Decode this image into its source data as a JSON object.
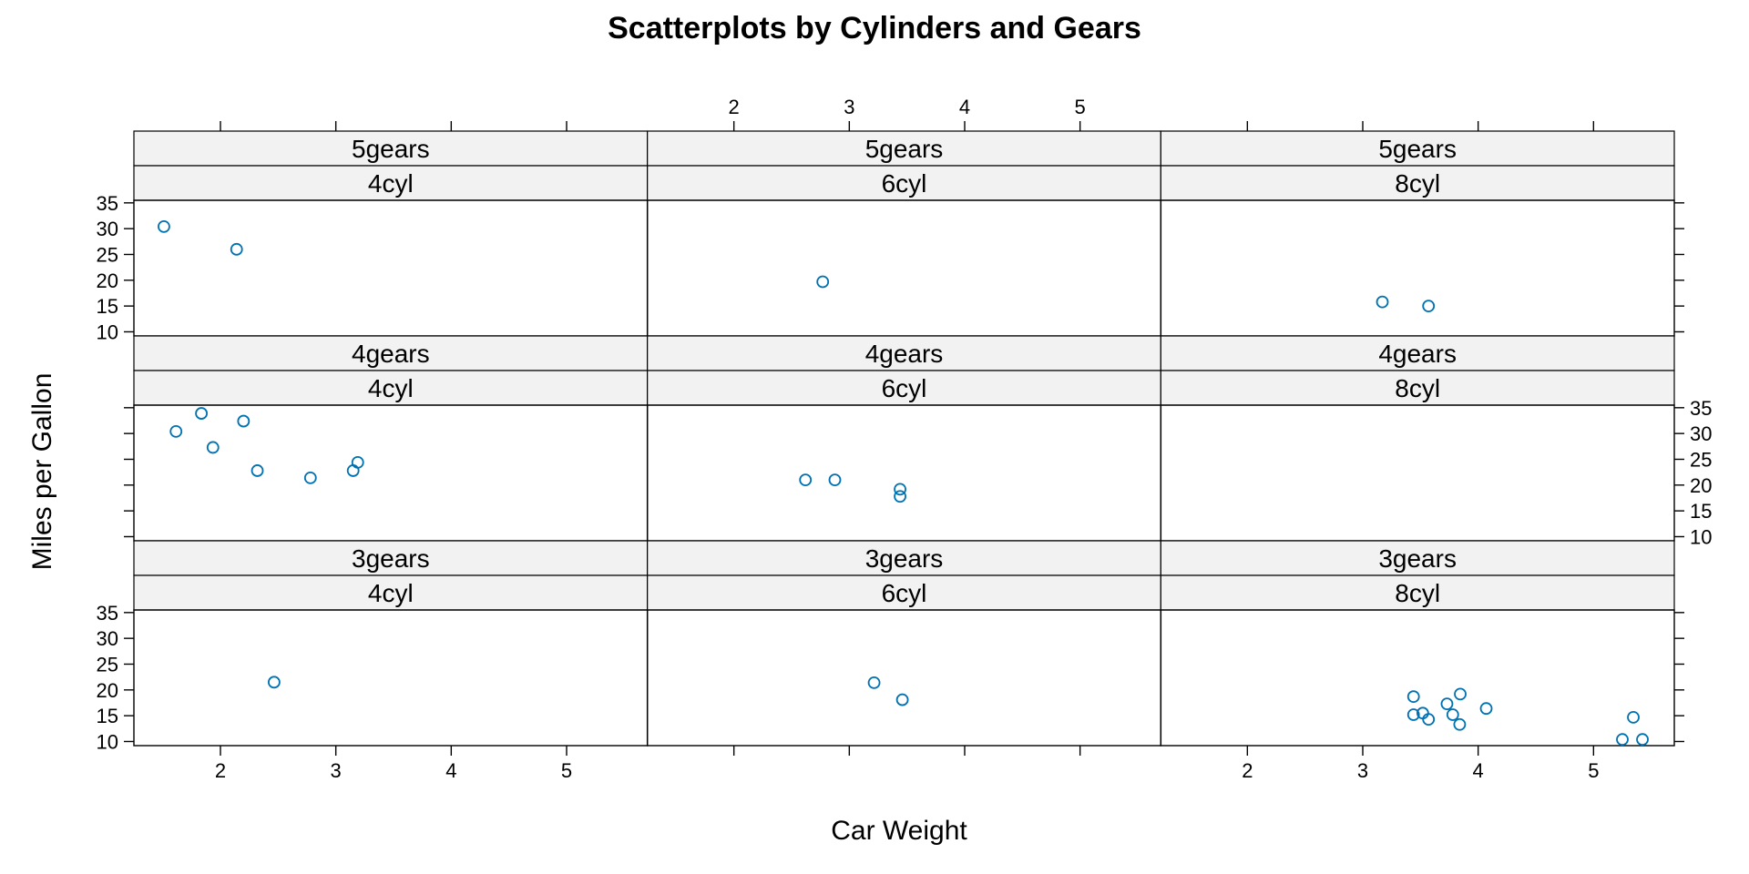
{
  "chart_data": {
    "type": "scatter",
    "title": "Scatterplots by Cylinders and Gears",
    "xlabel": "Car Weight",
    "ylabel": "Miles per Gallon",
    "xlim": [
      1.25,
      5.7
    ],
    "ylim": [
      9.2,
      35.5
    ],
    "x_ticks": [
      "2",
      "3",
      "4",
      "5"
    ],
    "y_ticks": [
      "10",
      "15",
      "20",
      "25",
      "30",
      "35"
    ],
    "point_color": "#0072b2",
    "layout": {
      "columns": [
        "4cyl",
        "6cyl",
        "8cyl"
      ],
      "rows": [
        "5gears",
        "4gears",
        "3gears"
      ]
    },
    "panels": [
      {
        "cyl": "4cyl",
        "gears": "5gears",
        "points": [
          [
            1.51,
            30.4
          ],
          [
            2.14,
            26.0
          ]
        ]
      },
      {
        "cyl": "6cyl",
        "gears": "5gears",
        "points": [
          [
            2.77,
            19.7
          ]
        ]
      },
      {
        "cyl": "8cyl",
        "gears": "5gears",
        "points": [
          [
            3.17,
            15.8
          ],
          [
            3.57,
            15.0
          ]
        ]
      },
      {
        "cyl": "4cyl",
        "gears": "4gears",
        "points": [
          [
            1.615,
            30.4
          ],
          [
            1.835,
            33.9
          ],
          [
            1.935,
            27.3
          ],
          [
            2.2,
            32.4
          ],
          [
            2.32,
            22.8
          ],
          [
            2.78,
            21.4
          ],
          [
            3.15,
            22.8
          ],
          [
            3.19,
            24.4
          ]
        ]
      },
      {
        "cyl": "6cyl",
        "gears": "4gears",
        "points": [
          [
            2.62,
            21.0
          ],
          [
            2.875,
            21.0
          ],
          [
            3.44,
            19.2
          ],
          [
            3.44,
            17.8
          ]
        ]
      },
      {
        "cyl": "8cyl",
        "gears": "4gears",
        "points": []
      },
      {
        "cyl": "4cyl",
        "gears": "3gears",
        "points": [
          [
            2.465,
            21.5
          ]
        ]
      },
      {
        "cyl": "6cyl",
        "gears": "3gears",
        "points": [
          [
            3.215,
            21.4
          ],
          [
            3.46,
            18.1
          ]
        ]
      },
      {
        "cyl": "8cyl",
        "gears": "3gears",
        "points": [
          [
            3.44,
            18.7
          ],
          [
            3.44,
            15.2
          ],
          [
            3.52,
            15.5
          ],
          [
            3.57,
            14.3
          ],
          [
            3.73,
            17.3
          ],
          [
            3.78,
            15.2
          ],
          [
            3.84,
            13.3
          ],
          [
            3.845,
            19.2
          ],
          [
            4.07,
            16.4
          ],
          [
            5.25,
            10.4
          ],
          [
            5.345,
            14.7
          ],
          [
            5.424,
            10.4
          ]
        ]
      }
    ]
  }
}
